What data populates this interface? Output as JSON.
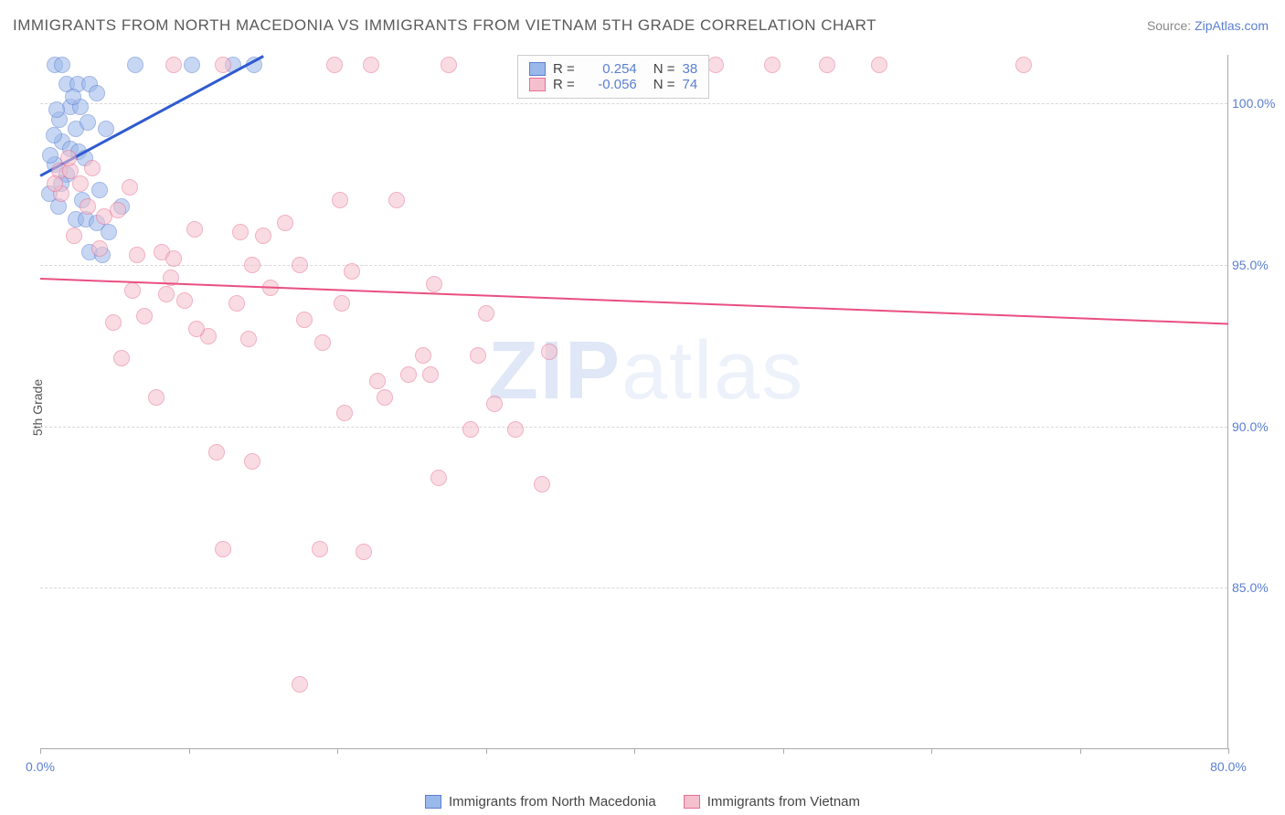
{
  "title": "IMMIGRANTS FROM NORTH MACEDONIA VS IMMIGRANTS FROM VIETNAM 5TH GRADE CORRELATION CHART",
  "source_prefix": "Source: ",
  "source_link": "ZipAtlas.com",
  "watermark_a": "ZIP",
  "watermark_b": "atlas",
  "ylabel": "5th Grade",
  "chart": {
    "type": "scatter",
    "xlim": [
      0,
      80
    ],
    "ylim": [
      80,
      101.5
    ],
    "xtick_positions": [
      0,
      10,
      20,
      30,
      40,
      50,
      60,
      70,
      80
    ],
    "xtick_labels": {
      "0": "0.0%",
      "80": "80.0%"
    },
    "ytick_positions": [
      85,
      90,
      95,
      100
    ],
    "ytick_labels": [
      "85.0%",
      "90.0%",
      "95.0%",
      "100.0%"
    ],
    "grid_color": "#d8d8d8",
    "axis_color": "#aaaaaa",
    "background_color": "#ffffff",
    "marker_radius": 9,
    "marker_opacity": 0.55,
    "marker_border_width": 1
  },
  "series": [
    {
      "name": "Immigrants from North Macedonia",
      "color_fill": "#9bb8ea",
      "color_stroke": "#5b7fd1",
      "r": 0.254,
      "n": 38,
      "trend": {
        "x1": 0,
        "y1": 97.8,
        "x2": 15,
        "y2": 101.5,
        "color": "#2f5bd0",
        "width": 2.5
      },
      "points": [
        [
          1.0,
          101.2
        ],
        [
          1.5,
          101.2
        ],
        [
          6.4,
          101.2
        ],
        [
          10.2,
          101.2
        ],
        [
          13.0,
          101.2
        ],
        [
          14.4,
          101.2
        ],
        [
          1.8,
          100.6
        ],
        [
          2.5,
          100.6
        ],
        [
          3.3,
          100.6
        ],
        [
          3.8,
          100.3
        ],
        [
          2.0,
          99.9
        ],
        [
          2.7,
          99.9
        ],
        [
          1.3,
          99.5
        ],
        [
          2.4,
          99.2
        ],
        [
          3.2,
          99.4
        ],
        [
          4.4,
          99.2
        ],
        [
          1.5,
          98.8
        ],
        [
          2.0,
          98.6
        ],
        [
          2.6,
          98.5
        ],
        [
          1.0,
          98.1
        ],
        [
          1.8,
          97.8
        ],
        [
          0.6,
          97.2
        ],
        [
          4.0,
          97.3
        ],
        [
          1.2,
          96.8
        ],
        [
          5.5,
          96.8
        ],
        [
          2.4,
          96.4
        ],
        [
          3.1,
          96.4
        ],
        [
          3.8,
          96.3
        ],
        [
          4.6,
          96.0
        ],
        [
          3.3,
          95.4
        ],
        [
          4.2,
          95.3
        ],
        [
          1.4,
          97.5
        ],
        [
          0.9,
          99.0
        ],
        [
          2.2,
          100.2
        ],
        [
          3.0,
          98.3
        ],
        [
          0.7,
          98.4
        ],
        [
          1.1,
          99.8
        ],
        [
          2.8,
          97.0
        ]
      ]
    },
    {
      "name": "Immigrants from Vietnam",
      "color_fill": "#f5c0cd",
      "color_stroke": "#e86f93",
      "r": -0.056,
      "n": 74,
      "trend": {
        "x1": 0,
        "y1": 94.6,
        "x2": 80,
        "y2": 93.2,
        "color": "#e94f80",
        "width": 2
      },
      "points": [
        [
          9.0,
          101.2
        ],
        [
          12.3,
          101.2
        ],
        [
          19.8,
          101.2
        ],
        [
          22.3,
          101.2
        ],
        [
          27.5,
          101.2
        ],
        [
          35.4,
          101.2
        ],
        [
          40.8,
          101.2
        ],
        [
          45.5,
          101.2
        ],
        [
          49.3,
          101.2
        ],
        [
          53.0,
          101.2
        ],
        [
          56.5,
          101.2
        ],
        [
          66.2,
          101.2
        ],
        [
          1.3,
          97.9
        ],
        [
          2.0,
          97.9
        ],
        [
          2.7,
          97.5
        ],
        [
          20.2,
          97.0
        ],
        [
          24.0,
          97.0
        ],
        [
          1.4,
          97.2
        ],
        [
          3.2,
          96.8
        ],
        [
          4.3,
          96.5
        ],
        [
          10.4,
          96.1
        ],
        [
          13.5,
          96.0
        ],
        [
          15.0,
          95.9
        ],
        [
          4.0,
          95.5
        ],
        [
          6.5,
          95.3
        ],
        [
          8.2,
          95.4
        ],
        [
          9.0,
          95.2
        ],
        [
          14.3,
          95.0
        ],
        [
          17.5,
          95.0
        ],
        [
          21.0,
          94.8
        ],
        [
          26.5,
          94.4
        ],
        [
          6.2,
          94.2
        ],
        [
          8.5,
          94.1
        ],
        [
          9.7,
          93.9
        ],
        [
          13.2,
          93.8
        ],
        [
          20.3,
          93.8
        ],
        [
          4.9,
          93.2
        ],
        [
          11.3,
          92.8
        ],
        [
          14.0,
          92.7
        ],
        [
          17.8,
          93.3
        ],
        [
          5.5,
          92.1
        ],
        [
          25.8,
          92.2
        ],
        [
          34.3,
          92.3
        ],
        [
          22.7,
          91.4
        ],
        [
          24.8,
          91.6
        ],
        [
          26.3,
          91.6
        ],
        [
          29.5,
          92.2
        ],
        [
          7.8,
          90.9
        ],
        [
          30.6,
          90.7
        ],
        [
          23.2,
          90.9
        ],
        [
          20.5,
          90.4
        ],
        [
          29.0,
          89.9
        ],
        [
          32.0,
          89.9
        ],
        [
          11.9,
          89.2
        ],
        [
          14.3,
          88.9
        ],
        [
          26.8,
          88.4
        ],
        [
          33.8,
          88.2
        ],
        [
          18.8,
          86.2
        ],
        [
          12.3,
          86.2
        ],
        [
          21.8,
          86.1
        ],
        [
          17.5,
          82.0
        ],
        [
          1.9,
          98.3
        ],
        [
          3.5,
          98.0
        ],
        [
          6.0,
          97.4
        ],
        [
          8.8,
          94.6
        ],
        [
          16.5,
          96.3
        ],
        [
          1.0,
          97.5
        ],
        [
          2.3,
          95.9
        ],
        [
          5.2,
          96.7
        ],
        [
          7.0,
          93.4
        ],
        [
          10.5,
          93.0
        ],
        [
          15.5,
          94.3
        ],
        [
          19.0,
          92.6
        ],
        [
          30.0,
          93.5
        ]
      ]
    }
  ],
  "legend": {
    "r_label": "R",
    "n_label": "N",
    "eq": "="
  }
}
